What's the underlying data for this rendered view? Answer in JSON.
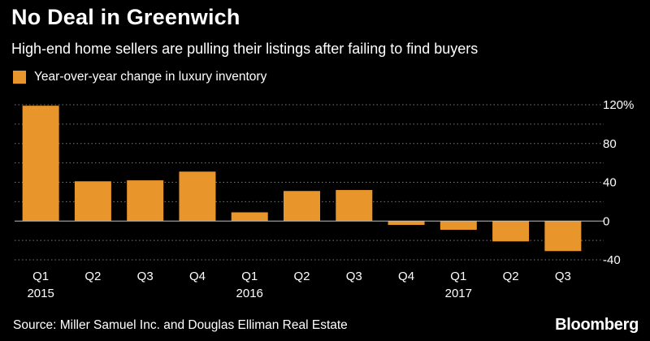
{
  "header": {
    "title": "No Deal in Greenwich",
    "subtitle": "High-end home sellers are pulling their listings after failing to find buyers"
  },
  "legend": {
    "label": "Year-over-year change in luxury inventory",
    "color": "#e8952b"
  },
  "footer": {
    "source": "Source: Miller Samuel Inc. and Douglas Elliman Real Estate",
    "brand": "Bloomberg"
  },
  "chart_data": {
    "type": "bar",
    "categories": [
      "Q1",
      "Q2",
      "Q3",
      "Q4",
      "Q1",
      "Q2",
      "Q3",
      "Q4",
      "Q1",
      "Q2",
      "Q3"
    ],
    "year_labels": [
      {
        "index": 0,
        "label": "2015"
      },
      {
        "index": 4,
        "label": "2016"
      },
      {
        "index": 8,
        "label": "2017"
      }
    ],
    "series": [
      {
        "values": [
          119,
          41,
          42,
          51,
          9,
          31,
          32,
          -4,
          -9,
          -21,
          -31
        ]
      }
    ],
    "ylim": [
      -40,
      120
    ],
    "yticks": [
      {
        "value": 120,
        "label": "120%"
      },
      {
        "value": 80,
        "label": "80"
      },
      {
        "value": 40,
        "label": "40"
      },
      {
        "value": 0,
        "label": "0"
      },
      {
        "value": -40,
        "label": "-40"
      }
    ],
    "minor_grid_step": 20,
    "grid": true,
    "bar_color": "#e8952b",
    "background": "#000000"
  }
}
